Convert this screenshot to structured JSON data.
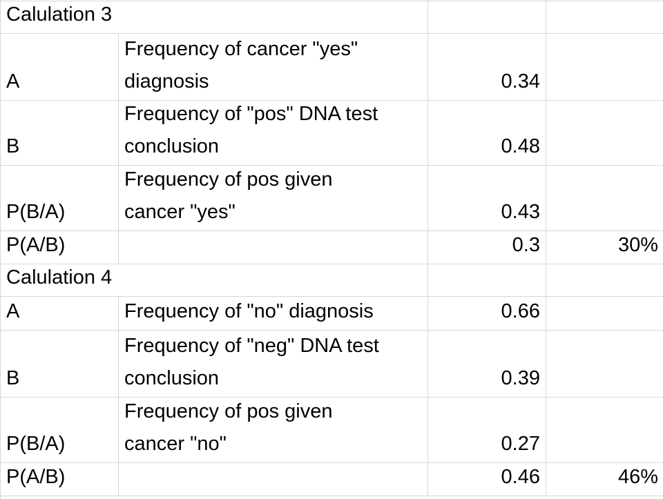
{
  "app": {
    "type": "spreadsheet",
    "grid_color": "#d6d6d6",
    "text_color": "#000000",
    "background": "#ffffff"
  },
  "columns": {
    "label_col": "A",
    "description_col": "B",
    "value_col": "C",
    "percent_col": "D"
  },
  "sections": [
    {
      "title": "Calulation 3",
      "rows": [
        {
          "label": "A",
          "desc": "Frequency of  cancer \"yes\"\ndiagnosis",
          "value": "0.34",
          "percent": ""
        },
        {
          "label": "B",
          "desc": "Frequency of \"pos\" DNA test\nconclusion",
          "value": "0.48",
          "percent": ""
        },
        {
          "label": "P(B/A)",
          "desc": "Frequency of pos given\ncancer \"yes\"",
          "value": "0.43",
          "percent": ""
        },
        {
          "label": "P(A/B)",
          "desc": "",
          "value": "0.3",
          "percent": "30%"
        }
      ]
    },
    {
      "title": "Calulation 4",
      "rows": [
        {
          "label": "A",
          "desc": "Frequency of \"no\" diagnosis",
          "value": "0.66",
          "percent": ""
        },
        {
          "label": "B",
          "desc": "Frequency of \"neg\" DNA test\nconclusion",
          "value": "0.39",
          "percent": ""
        },
        {
          "label": "P(B/A)",
          "desc": "Frequency of pos given\ncancer \"no\"",
          "value": "0.27",
          "percent": ""
        },
        {
          "label": "P(A/B)",
          "desc": "",
          "value": "0.46",
          "percent": "46%"
        }
      ]
    }
  ]
}
